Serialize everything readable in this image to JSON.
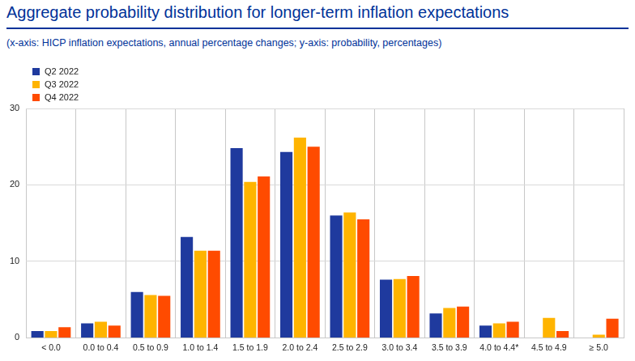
{
  "chart_data": {
    "type": "bar",
    "title": "Aggregate probability distribution for longer-term inflation expectations",
    "subtitle": "(x-axis: HICP inflation expectations, annual percentage changes; y-axis: probability, percentages)",
    "categories": [
      "< 0.0",
      "0.0 to 0.4",
      "0.5 to 0.9",
      "1.0 to 1.4",
      "1.5 to 1.9",
      "2.0 to 2.4",
      "2.5 to 2.9",
      "3.0 to 3.4",
      "3.5 to 3.9",
      "4.0 to 4.4*",
      "4.5 to 4.9",
      "≥ 5.0"
    ],
    "series": [
      {
        "name": "Q2 2022",
        "color": "#1f3a9e",
        "values": [
          0.9,
          1.9,
          6.0,
          13.2,
          24.8,
          24.3,
          16.0,
          7.6,
          3.2,
          1.6,
          null,
          null
        ]
      },
      {
        "name": "Q3 2022",
        "color": "#ffb400",
        "values": [
          0.9,
          2.1,
          5.6,
          11.4,
          20.4,
          26.2,
          16.4,
          7.7,
          3.9,
          1.9,
          2.6,
          0.4
        ]
      },
      {
        "name": "Q4 2022",
        "color": "#ff4b00",
        "values": [
          1.4,
          1.6,
          5.5,
          11.4,
          21.1,
          25.0,
          15.5,
          8.1,
          4.1,
          2.1,
          0.9,
          2.5
        ]
      }
    ],
    "ylim": [
      0,
      30
    ],
    "yticks": [
      0,
      10,
      20,
      30
    ],
    "grid": true,
    "legend": "upper left"
  }
}
